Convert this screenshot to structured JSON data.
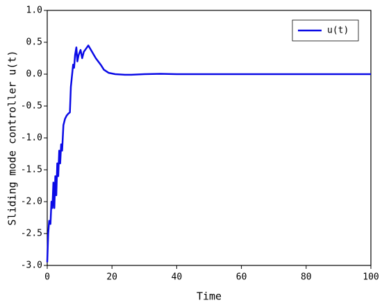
{
  "chart_data": {
    "type": "line",
    "xlabel": "Time",
    "ylabel": "Sliding mode controller u(t)",
    "x": [
      0,
      0.3,
      0.6,
      1,
      1.3,
      1.6,
      1.9,
      2.2,
      2.5,
      2.8,
      3.1,
      3.4,
      3.7,
      4,
      4.3,
      4.6,
      5,
      5.5,
      6,
      6.5,
      7,
      7.3,
      7.6,
      8,
      8.3,
      8.6,
      9,
      9.3,
      9.7,
      10.3,
      10.8,
      11.3,
      12,
      12.7,
      13.5,
      15,
      16.5,
      17.5,
      19,
      21,
      24,
      26,
      30,
      35,
      40,
      100
    ],
    "series": [
      {
        "name": "u(t)",
        "color": "#0a0ae6",
        "values": [
          -2.95,
          -2.5,
          -2.3,
          -2.35,
          -2.0,
          -2.1,
          -1.7,
          -2.1,
          -1.6,
          -1.9,
          -1.4,
          -1.6,
          -1.2,
          -1.4,
          -1.1,
          -1.2,
          -0.8,
          -0.7,
          -0.65,
          -0.62,
          -0.6,
          -0.2,
          -0.05,
          0.15,
          0.1,
          0.3,
          0.42,
          0.2,
          0.3,
          0.38,
          0.25,
          0.35,
          0.4,
          0.45,
          0.38,
          0.25,
          0.15,
          0.07,
          0.02,
          0.0,
          -0.01,
          -0.01,
          0.0,
          0.005,
          0.0,
          0.0
        ]
      }
    ],
    "xlim": [
      0,
      100
    ],
    "xticks": [
      0,
      20,
      40,
      60,
      80,
      100
    ],
    "ylim": [
      -3,
      1
    ],
    "yticks": [
      {
        "value": -3,
        "label": "-3.0"
      },
      {
        "value": -2.5,
        "label": "-2.5"
      },
      {
        "value": -2,
        "label": "-2.0"
      },
      {
        "value": -1.5,
        "label": "-1.5"
      },
      {
        "value": -1,
        "label": "-1.0"
      },
      {
        "value": -0.5,
        "label": "-0.5"
      },
      {
        "value": 0,
        "label": "0.0"
      },
      {
        "value": 0.5,
        "label": "0.5"
      },
      {
        "value": 1,
        "label": "1.0"
      }
    ],
    "legend": "upper right",
    "grid": false
  }
}
